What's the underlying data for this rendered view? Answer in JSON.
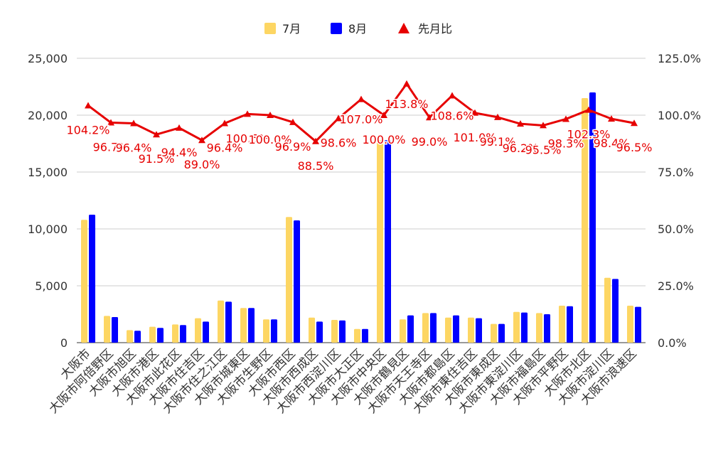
{
  "colors": {
    "july": "#fdd663",
    "august": "#0000ff",
    "ratio": "#e60000",
    "grid": "#cccccc",
    "axis": "#333333"
  },
  "chart_data": {
    "type": "bar",
    "title": "",
    "xlabel": "",
    "ylabel": "",
    "ylim": [
      0,
      25000
    ],
    "y2lim": [
      0,
      125
    ],
    "y_ticks": [
      "0",
      "5,000",
      "10,000",
      "15,000",
      "20,000",
      "25,000"
    ],
    "y2_ticks": [
      "0.0%",
      "25.0%",
      "50.0%",
      "75.0%",
      "100.0%",
      "125.0%"
    ],
    "legend": {
      "position": "top",
      "entries": [
        "7月",
        "8月",
        "先月比"
      ]
    },
    "grid": true,
    "categories": [
      "大阪市",
      "大阪市阿倍野区",
      "大阪市旭区",
      "大阪市港区",
      "大阪市此花区",
      "大阪市住吉区",
      "大阪市住之江区",
      "大阪市城東区",
      "大阪市生野区",
      "大阪市西区",
      "大阪市西成区",
      "大阪市西淀川区",
      "大阪市大正区",
      "大阪市中央区",
      "大阪市鶴見区",
      "大阪市天王寺区",
      "大阪市都島区",
      "大阪市東住吉区",
      "大阪市東成区",
      "大阪市東淀川区",
      "大阪市福島区",
      "大阪市平野区",
      "大阪市北区",
      "大阪市淀川区",
      "大阪市浪速区"
    ],
    "series": [
      {
        "name": "7月",
        "type": "bar",
        "axis": "left",
        "values": [
          10800,
          2350,
          1100,
          1400,
          1600,
          2150,
          3700,
          3050,
          2050,
          11050,
          2200,
          2000,
          1200,
          17800,
          2050,
          2600,
          2200,
          2200,
          1650,
          2700,
          2600,
          3250,
          21500,
          5700,
          3250
        ]
      },
      {
        "name": "8月",
        "type": "bar",
        "axis": "left",
        "values": [
          11250,
          2250,
          1050,
          1300,
          1550,
          1850,
          3600,
          3050,
          2050,
          10750,
          1850,
          1950,
          1200,
          17800,
          2400,
          2600,
          2400,
          2150,
          1650,
          2650,
          2500,
          3200,
          22000,
          5600,
          3150
        ]
      },
      {
        "name": "先月比",
        "type": "line",
        "axis": "right",
        "unit": "%",
        "values": [
          104.2,
          96.7,
          96.4,
          91.5,
          94.4,
          89.0,
          96.4,
          100.5,
          100.0,
          96.9,
          88.5,
          98.6,
          107.0,
          100.0,
          113.8,
          99.0,
          108.6,
          101.0,
          99.1,
          96.2,
          95.5,
          98.3,
          102.3,
          98.4,
          96.5
        ],
        "labels": [
          "104.2%",
          "96.7%",
          "96.4%",
          "91.5%",
          "94.4%",
          "89.0%",
          "96.4%",
          "100.5%",
          "100.0%",
          "96.9%",
          "88.5%",
          "98.6%",
          "107.0%",
          "100.0%",
          "113.8%",
          "99.0%",
          "108.6%",
          "101.0%",
          "99.1%",
          "96.2%",
          "95.5%",
          "98.3%",
          "102.3%",
          "98.4%",
          "96.5%"
        ]
      }
    ]
  }
}
